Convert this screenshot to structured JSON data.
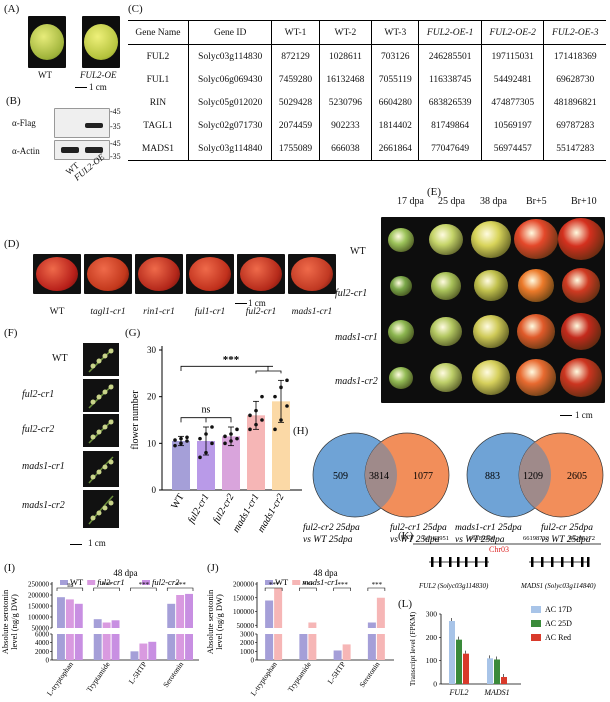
{
  "panels": {
    "A": "(A)",
    "B": "(B)",
    "C": "(C)",
    "D": "(D)",
    "E": "(E)",
    "F": "(F)",
    "G": "(G)",
    "H": "(H)",
    "I": "(I)",
    "J": "(J)",
    "K": "(K)",
    "L": "(L)"
  },
  "panelA": {
    "labels": [
      "WT",
      "FUL2-OE"
    ],
    "scale": "1 cm"
  },
  "panelB": {
    "rows": [
      "α-Flag",
      "α-Actin"
    ],
    "markers": [
      "45",
      "35",
      "45",
      "35"
    ],
    "lanes": [
      "WT",
      "FUL2-OE"
    ]
  },
  "panelC": {
    "headers": [
      "Gene Name",
      "Gene ID",
      "WT-1",
      "WT-2",
      "WT-3",
      "FUL2-OE-1",
      "FUL2-OE-2",
      "FUL2-OE-3"
    ],
    "rows": [
      [
        "FUL2",
        "Solyc03g114830",
        "872129",
        "1028611",
        "703126",
        "246285501",
        "197115031",
        "171418369"
      ],
      [
        "FUL1",
        "Solyc06g069430",
        "7459280",
        "16132468",
        "7055119",
        "116338745",
        "54492481",
        "69628730"
      ],
      [
        "RIN",
        "Solyc05g012020",
        "5029428",
        "5230796",
        "6604280",
        "683826539",
        "474877305",
        "481896821"
      ],
      [
        "TAGL1",
        "Solyc02g071730",
        "2074459",
        "902233",
        "1814402",
        "81749864",
        "10569197",
        "69787283"
      ],
      [
        "MADS1",
        "Solyc03g114840",
        "1755089",
        "666038",
        "2661864",
        "77047649",
        "56974457",
        "55147283"
      ]
    ]
  },
  "panelD": {
    "labels": [
      "WT",
      "tagl1-cr1",
      "rin1-cr1",
      "ful1-cr1",
      "ful2-cr1",
      "mads1-cr1"
    ],
    "scale": "1 cm"
  },
  "panelE": {
    "cols": [
      "17 dpa",
      "25 dpa",
      "38 dpa",
      "Br+5",
      "Br+10"
    ],
    "rows": [
      "WT",
      "ful2-cr1",
      "mads1-cr1",
      "mads1-cr2"
    ],
    "scale": "1 cm"
  },
  "panelF": {
    "rows": [
      "WT",
      "ful2-cr1",
      "ful2-cr2",
      "mads1-cr1",
      "mads1-cr2"
    ],
    "scale": "1 cm"
  },
  "panelH": {
    "left": {
      "a": "509",
      "ab": "3814",
      "b": "1077",
      "caption_a": "ful2-cr2 25dpa",
      "caption_b": "ful2-cr1 25dpa",
      "vs": "vs WT 25dpa"
    },
    "right": {
      "a": "883",
      "ab": "1209",
      "b": "2605",
      "caption_a": "mads1-cr1 25dpa",
      "caption_b": "ful2-cr 25dpa",
      "vs": "vs WT 25dpa"
    }
  },
  "panelK": {
    "chrom": "Chr03",
    "coords": [
      "66182951",
      "66189290",
      "66198733",
      "66205172"
    ],
    "genes": [
      "FUL2 (Solyc03g114830)",
      "MADS1 (Solyc03g114840)"
    ]
  },
  "chart_data": [
    {
      "id": "G",
      "type": "bar",
      "categories": [
        "WT",
        "ful2-cr1",
        "ful2-cr2",
        "mads1-cr1",
        "mads1-cr2"
      ],
      "values": [
        10.5,
        10.5,
        11.5,
        16,
        19
      ],
      "errors": [
        1,
        3,
        2,
        3,
        4.5
      ],
      "points": [
        [
          9.5,
          10,
          10.5,
          10.7,
          11,
          11.3
        ],
        [
          7,
          8,
          10,
          11,
          12,
          13.5
        ],
        [
          10,
          10.5,
          11,
          11.5,
          12,
          13
        ],
        [
          13,
          14,
          15,
          16,
          17,
          20
        ],
        [
          13,
          15,
          18,
          20,
          22,
          23.5
        ]
      ],
      "colors": [
        "#a59fd8",
        "#b99ae8",
        "#d9a4dc",
        "#f6b6b6",
        "#fbd9a6"
      ],
      "ylabel": "flower  number",
      "ylim": [
        0,
        30
      ],
      "yticks": [
        0,
        10,
        20,
        30
      ],
      "annotations": [
        "ns",
        "***"
      ]
    },
    {
      "id": "I",
      "type": "bar",
      "title": "48 dpa",
      "categories": [
        "L-tryptophan",
        "Tryptamide",
        "L-5HTP",
        "Serotonin"
      ],
      "series": [
        {
          "name": "WT",
          "values": [
            190000,
            90000,
            2000,
            160000
          ],
          "color": "#a59fd8"
        },
        {
          "name": "ful2-cr1",
          "values": [
            180000,
            75000,
            3800,
            200000
          ],
          "color": "#d99ae0"
        },
        {
          "name": "ful2-cr2",
          "values": [
            160000,
            85000,
            4200,
            205000
          ],
          "color": "#c88fe2"
        }
      ],
      "ylabel": "Absolute serotonin level (ng/g DW)",
      "yticks_top": [
        "50000",
        "100000",
        "150000",
        "200000",
        "250000"
      ],
      "yticks_bottom": [
        "0",
        "2000",
        "4000",
        "6000"
      ],
      "annotations": [
        "ns",
        "***",
        "***",
        "***"
      ]
    },
    {
      "id": "J",
      "type": "bar",
      "title": "48 dpa",
      "categories": [
        "L-tryptophan",
        "Tryptamide",
        "L-5HTP",
        "Serotonin"
      ],
      "series": [
        {
          "name": "WT",
          "values": [
            140000,
            32000,
            1100,
            60000
          ],
          "color": "#a59fd8"
        },
        {
          "name": "mads1-cr1",
          "values": [
            185000,
            60000,
            1800,
            150000
          ],
          "color": "#f6b6b6"
        }
      ],
      "ylabel": "Absolute serotonin level (ng/g DW)",
      "yticks_top": [
        "50000",
        "100000",
        "150000",
        "200000"
      ],
      "yticks_bottom": [
        "0",
        "1000",
        "2000",
        "3000"
      ],
      "annotations": [
        "***",
        "***",
        "***",
        "***"
      ]
    },
    {
      "id": "L",
      "type": "bar",
      "categories": [
        "FUL2",
        "MADS1"
      ],
      "series": [
        {
          "name": "AC 17D",
          "values": [
            270,
            110
          ],
          "color": "#a8c4e8"
        },
        {
          "name": "AC 25D",
          "values": [
            190,
            105
          ],
          "color": "#3a8a3a"
        },
        {
          "name": "AC Red",
          "values": [
            130,
            30
          ],
          "color": "#d93a2b"
        }
      ],
      "ylabel": "Transcript level (FPKM)",
      "ylim": [
        0,
        300
      ],
      "yticks": [
        0,
        100,
        200,
        300
      ]
    }
  ]
}
